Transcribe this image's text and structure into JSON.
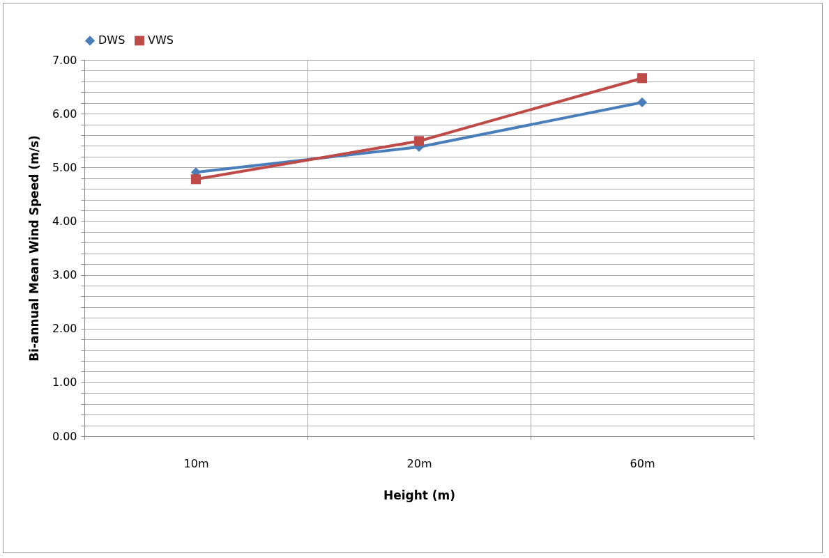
{
  "chart_data": {
    "type": "line",
    "xlabel": "Height (m)",
    "ylabel": "Bi-annual Mean Wind Speed (m/s)",
    "categories": [
      "10m",
      "20m",
      "60m"
    ],
    "series": [
      {
        "name": "DWS",
        "color": "#4a7ebb",
        "marker": "diamond",
        "values": [
          4.91,
          5.38,
          6.21
        ]
      },
      {
        "name": "VWS",
        "color": "#be4b48",
        "marker": "square",
        "values": [
          4.78,
          5.49,
          6.66
        ]
      }
    ],
    "ylim": [
      0,
      7
    ],
    "yticks": [
      {
        "value": 0,
        "label": "0.00"
      },
      {
        "value": 0.2,
        "label": null
      },
      {
        "value": 0.4,
        "label": null
      },
      {
        "value": 0.6,
        "label": null
      },
      {
        "value": 0.8,
        "label": null
      },
      {
        "value": 1,
        "label": "1.00"
      },
      {
        "value": 1.2,
        "label": null
      },
      {
        "value": 1.4,
        "label": null
      },
      {
        "value": 1.6,
        "label": null
      },
      {
        "value": 1.8,
        "label": null
      },
      {
        "value": 2,
        "label": "2.00"
      },
      {
        "value": 2.2,
        "label": null
      },
      {
        "value": 2.4,
        "label": null
      },
      {
        "value": 2.6,
        "label": null
      },
      {
        "value": 2.8,
        "label": null
      },
      {
        "value": 3,
        "label": "3.00"
      },
      {
        "value": 3.2,
        "label": null
      },
      {
        "value": 3.4,
        "label": null
      },
      {
        "value": 3.6,
        "label": null
      },
      {
        "value": 3.8,
        "label": null
      },
      {
        "value": 4,
        "label": "4.00"
      },
      {
        "value": 4.2,
        "label": null
      },
      {
        "value": 4.4,
        "label": null
      },
      {
        "value": 4.6,
        "label": null
      },
      {
        "value": 4.8,
        "label": null
      },
      {
        "value": 5,
        "label": "5.00"
      },
      {
        "value": 5.2,
        "label": null
      },
      {
        "value": 5.4,
        "label": null
      },
      {
        "value": 5.6,
        "label": null
      },
      {
        "value": 5.8,
        "label": null
      },
      {
        "value": 6,
        "label": "6.00"
      },
      {
        "value": 6.2,
        "label": null
      },
      {
        "value": 6.4,
        "label": null
      },
      {
        "value": 6.6,
        "label": null
      },
      {
        "value": 6.8,
        "label": null
      },
      {
        "value": 7,
        "label": "7.00"
      }
    ],
    "grid": true,
    "legend": "top"
  }
}
